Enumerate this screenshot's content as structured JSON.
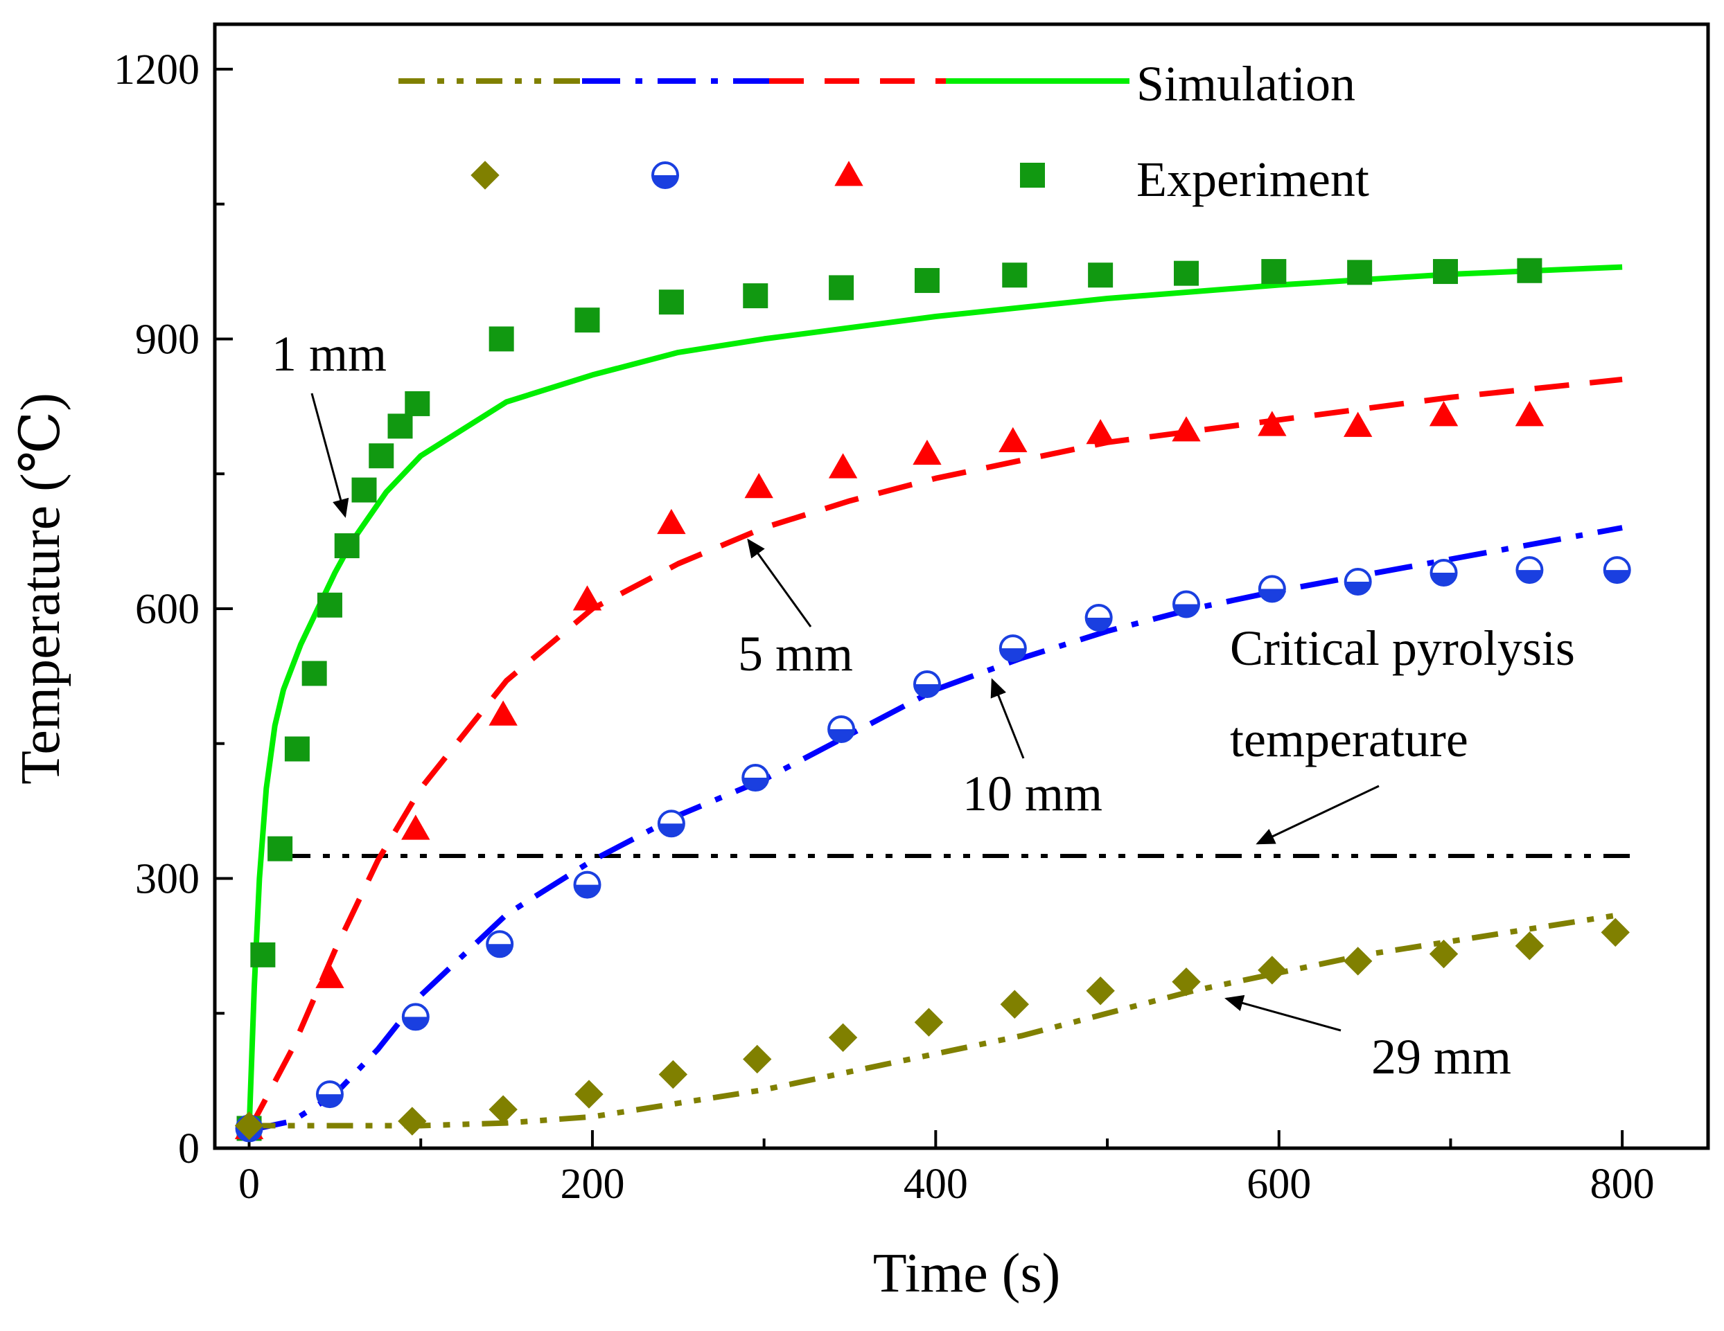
{
  "chart_data": {
    "type": "line",
    "xlabel": "Time (s)",
    "ylabel": "Temperature (℃)",
    "xlim": [
      -20,
      850
    ],
    "ylim": [
      0,
      1250
    ],
    "x_ticks": [
      0,
      200,
      400,
      600,
      800
    ],
    "y_ticks": [
      0,
      300,
      600,
      900,
      1200
    ],
    "grid": false,
    "legend": {
      "position": "top",
      "simulation_label": "Simulation",
      "experiment_label": "Experiment"
    },
    "critical_line": {
      "value": 325,
      "label_line1": "Critical pyrolysis",
      "label_line2": "temperature",
      "color": "#000000"
    },
    "series": [
      {
        "name": "1 mm",
        "color": "#00ee00",
        "marker_color": "#119911",
        "marker": "square",
        "dash": "solid",
        "sim_x": [
          0,
          3,
          6,
          10,
          15,
          20,
          30,
          40,
          50,
          60,
          80,
          100,
          150,
          200,
          250,
          300,
          400,
          500,
          600,
          700,
          800
        ],
        "sim_y": [
          20,
          180,
          300,
          400,
          470,
          510,
          560,
          600,
          640,
          675,
          730,
          770,
          830,
          860,
          885,
          900,
          925,
          945,
          960,
          972,
          980
        ],
        "exp_x": [
          0,
          8,
          18,
          28,
          38,
          47,
          57,
          67,
          77,
          88,
          98,
          147,
          197,
          246,
          295,
          345,
          395,
          446,
          496,
          546,
          597,
          647,
          697,
          746
        ],
        "exp_y": [
          22,
          215,
          333,
          444,
          528,
          604,
          670,
          732,
          770,
          803,
          828,
          900,
          921,
          941,
          948,
          957,
          965,
          971,
          971,
          973,
          975,
          974,
          975,
          976
        ]
      },
      {
        "name": "5 mm",
        "color": "#ff0000",
        "marker_color": "#ff0000",
        "marker": "triangle",
        "dash": "dash",
        "sim_x": [
          0,
          25,
          50,
          75,
          100,
          150,
          200,
          250,
          300,
          350,
          400,
          450,
          500,
          600,
          700,
          800
        ],
        "sim_y": [
          20,
          110,
          220,
          320,
          400,
          520,
          600,
          650,
          690,
          720,
          745,
          765,
          785,
          810,
          835,
          855
        ],
        "exp_x": [
          0,
          47,
          97,
          148,
          197,
          246,
          297,
          346,
          395,
          445,
          496,
          546,
          596,
          646,
          696,
          746
        ],
        "exp_y": [
          22,
          190,
          355,
          482,
          610,
          695,
          735,
          757,
          772,
          786,
          795,
          798,
          804,
          803,
          815,
          815
        ]
      },
      {
        "name": "10 mm",
        "color": "#0000ff",
        "marker_color": "#1a3fe0",
        "marker": "half-circle",
        "dash": "dashdot",
        "sim_x": [
          0,
          25,
          50,
          75,
          100,
          150,
          200,
          250,
          300,
          350,
          400,
          450,
          500,
          550,
          600,
          700,
          800
        ],
        "sim_y": [
          20,
          30,
          60,
          110,
          170,
          260,
          320,
          370,
          410,
          460,
          510,
          545,
          575,
          600,
          620,
          655,
          690
        ],
        "exp_x": [
          0,
          47,
          97,
          146,
          197,
          246,
          295,
          345,
          395,
          445,
          495,
          546,
          596,
          646,
          696,
          746,
          797
        ],
        "exp_y": [
          22,
          60,
          146,
          227,
          293,
          361,
          412,
          466,
          516,
          556,
          590,
          605,
          622,
          630,
          640,
          643,
          643
        ]
      },
      {
        "name": "29 mm",
        "color": "#808000",
        "marker_color": "#808000",
        "marker": "diamond",
        "dash": "dashdotdot",
        "sim_x": [
          0,
          50,
          100,
          150,
          200,
          250,
          300,
          350,
          400,
          450,
          500,
          550,
          600,
          650,
          700,
          750,
          800
        ],
        "sim_y": [
          25,
          25,
          25,
          28,
          35,
          50,
          65,
          85,
          105,
          125,
          150,
          175,
          195,
          215,
          230,
          245,
          260
        ],
        "exp_x": [
          0,
          95,
          148,
          198,
          247,
          296,
          346,
          396,
          446,
          496,
          546,
          596,
          646,
          696,
          746,
          796
        ],
        "exp_y": [
          25,
          30,
          43,
          60,
          82,
          99,
          123,
          140,
          160,
          175,
          185,
          198,
          208,
          216,
          225,
          240
        ]
      }
    ],
    "annotations": [
      {
        "text": "1 mm",
        "points_to_x": 55,
        "points_to_y": 700
      },
      {
        "text": "5 mm",
        "points_to_x": 285,
        "points_to_y": 680
      },
      {
        "text": "10 mm",
        "points_to_x": 430,
        "points_to_y": 520
      },
      {
        "text": "29 mm",
        "points_to_x": 565,
        "points_to_y": 165
      },
      {
        "text": "Critical pyrolysis temperature",
        "points_to_x": 585,
        "points_to_y": 325
      }
    ]
  }
}
